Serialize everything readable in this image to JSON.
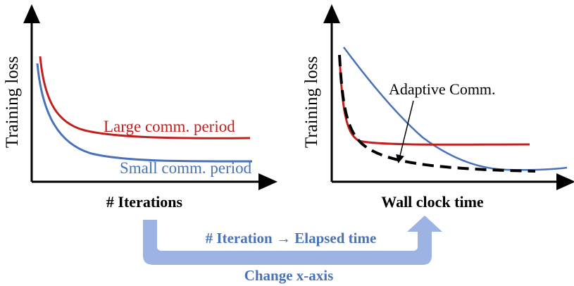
{
  "left_plot": {
    "y_label": "Training loss",
    "x_label": "# Iterations",
    "series": [
      {
        "label": "Large comm. period",
        "color": "#c0201e"
      },
      {
        "label": "Small comm. period",
        "color": "#4a72b8"
      }
    ]
  },
  "right_plot": {
    "y_label": "Training loss",
    "x_label": "Wall clock time",
    "annotation": "Adaptive Comm.",
    "series": [
      {
        "name": "red-curve",
        "color": "#c0201e"
      },
      {
        "name": "blue-curve",
        "color": "#4a72b8"
      },
      {
        "name": "adaptive-dashed-curve",
        "color": "#000000"
      }
    ]
  },
  "transition": {
    "arrow_text": "# Iteration → Elapsed time",
    "caption": "Change x-axis",
    "arrow_color": "#9db3e3",
    "text_color": "#4a72b8"
  }
}
